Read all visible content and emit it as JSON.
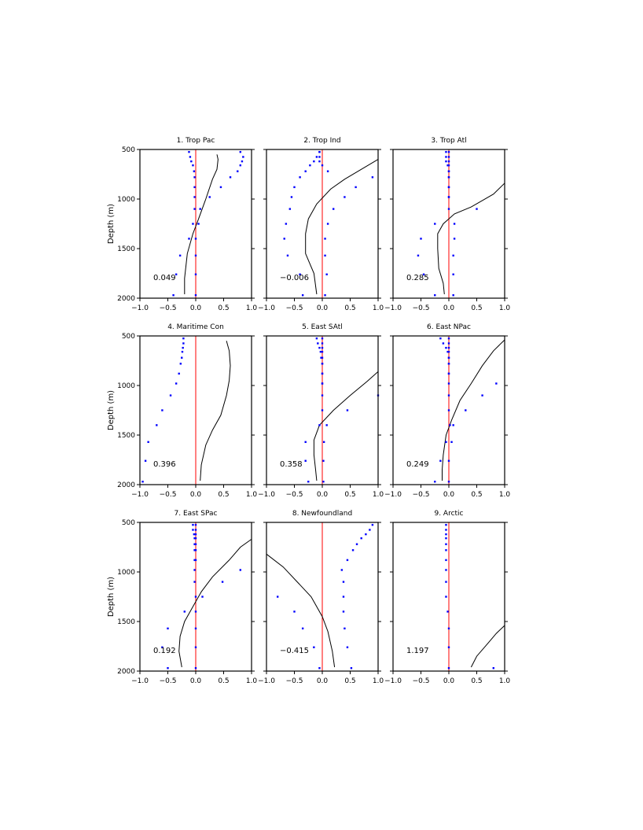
{
  "colors": {
    "zero_line": "#ff0000",
    "dots": "#0000ff",
    "curve": "#000000",
    "axes": "#000000"
  },
  "shared_axes": {
    "ylabel": "Depth (m)",
    "xlim": [
      -1.0,
      1.0
    ],
    "ylim": [
      2000,
      500
    ],
    "xticks": [
      "-1.0",
      "-0.5",
      "0.0",
      "0.5",
      "1.0"
    ],
    "yticks": [
      "500",
      "1000",
      "1500",
      "2000"
    ]
  },
  "chart_data": [
    {
      "type": "scatter",
      "title": "1. Trop Pac",
      "value_label": "0.049",
      "dots": [
        [
          -0.12,
          525
        ],
        [
          -0.1,
          575
        ],
        [
          -0.08,
          620
        ],
        [
          -0.05,
          660
        ],
        [
          -0.03,
          720
        ],
        [
          -0.02,
          780
        ],
        [
          -0.02,
          880
        ],
        [
          -0.02,
          980
        ],
        [
          -0.02,
          1100
        ],
        [
          -0.05,
          1250
        ],
        [
          -0.12,
          1400
        ],
        [
          -0.28,
          1570
        ],
        [
          -0.35,
          1760
        ],
        [
          -0.4,
          1970
        ],
        [
          0.8,
          525
        ],
        [
          0.85,
          575
        ],
        [
          0.83,
          620
        ],
        [
          0.8,
          660
        ],
        [
          0.75,
          720
        ],
        [
          0.62,
          780
        ],
        [
          0.45,
          880
        ],
        [
          0.25,
          980
        ],
        [
          0.08,
          1100
        ],
        [
          0.05,
          1250
        ],
        [
          0.0,
          1400
        ],
        [
          0.0,
          1570
        ],
        [
          0.0,
          1760
        ],
        [
          0.0,
          1970
        ]
      ],
      "curve": [
        [
          0.38,
          550
        ],
        [
          0.4,
          600
        ],
        [
          0.38,
          700
        ],
        [
          0.3,
          800
        ],
        [
          0.18,
          1000
        ],
        [
          0.05,
          1200
        ],
        [
          -0.05,
          1350
        ],
        [
          -0.15,
          1550
        ],
        [
          -0.2,
          1800
        ],
        [
          -0.2,
          1960
        ]
      ]
    },
    {
      "type": "scatter",
      "title": "2. Trop Ind",
      "value_label": "−0.006",
      "dots": [
        [
          -0.05,
          525
        ],
        [
          -0.1,
          575
        ],
        [
          -0.15,
          620
        ],
        [
          -0.22,
          660
        ],
        [
          -0.3,
          720
        ],
        [
          -0.4,
          780
        ],
        [
          -0.5,
          880
        ],
        [
          -0.55,
          980
        ],
        [
          -0.58,
          1100
        ],
        [
          -0.65,
          1250
        ],
        [
          -0.68,
          1400
        ],
        [
          -0.62,
          1570
        ],
        [
          -0.4,
          1760
        ],
        [
          -0.35,
          1970
        ],
        [
          -0.05,
          525
        ],
        [
          -0.05,
          575
        ],
        [
          -0.05,
          620
        ],
        [
          0.0,
          660
        ],
        [
          0.1,
          720
        ],
        [
          0.9,
          780
        ],
        [
          0.6,
          880
        ],
        [
          0.4,
          980
        ],
        [
          0.2,
          1100
        ],
        [
          0.1,
          1250
        ],
        [
          0.05,
          1400
        ],
        [
          0.05,
          1570
        ],
        [
          0.08,
          1760
        ],
        [
          0.05,
          1970
        ]
      ],
      "curve": [
        [
          1.0,
          600
        ],
        [
          0.7,
          700
        ],
        [
          0.4,
          800
        ],
        [
          0.15,
          900
        ],
        [
          -0.1,
          1050
        ],
        [
          -0.25,
          1200
        ],
        [
          -0.3,
          1350
        ],
        [
          -0.3,
          1550
        ],
        [
          -0.15,
          1750
        ],
        [
          -0.1,
          1960
        ]
      ]
    },
    {
      "type": "scatter",
      "title": "3. Trop Atl",
      "value_label": "0.285",
      "dots": [
        [
          -0.05,
          525
        ],
        [
          -0.05,
          575
        ],
        [
          -0.05,
          620
        ],
        [
          -0.02,
          660
        ],
        [
          0.0,
          720
        ],
        [
          0.0,
          780
        ],
        [
          0.0,
          880
        ],
        [
          0.0,
          980
        ],
        [
          0.0,
          1100
        ],
        [
          -0.25,
          1250
        ],
        [
          -0.5,
          1400
        ],
        [
          -0.55,
          1570
        ],
        [
          -0.45,
          1760
        ],
        [
          -0.25,
          1970
        ],
        [
          0.0,
          525
        ],
        [
          0.0,
          575
        ],
        [
          0.0,
          620
        ],
        [
          0.0,
          660
        ],
        [
          0.0,
          720
        ],
        [
          0.0,
          780
        ],
        [
          0.0,
          880
        ],
        [
          0.0,
          980
        ],
        [
          0.5,
          1100
        ],
        [
          0.1,
          1250
        ],
        [
          0.1,
          1400
        ],
        [
          0.08,
          1570
        ],
        [
          0.08,
          1760
        ],
        [
          0.08,
          1970
        ]
      ],
      "curve": [
        [
          1.0,
          840
        ],
        [
          0.8,
          950
        ],
        [
          0.4,
          1080
        ],
        [
          0.1,
          1150
        ],
        [
          -0.1,
          1250
        ],
        [
          -0.2,
          1350
        ],
        [
          -0.2,
          1500
        ],
        [
          -0.18,
          1700
        ],
        [
          -0.1,
          1850
        ],
        [
          -0.08,
          1960
        ]
      ]
    },
    {
      "type": "scatter",
      "title": "4. Maritime Con",
      "value_label": "0.396",
      "dots": [
        [
          -0.22,
          525
        ],
        [
          -0.22,
          575
        ],
        [
          -0.23,
          620
        ],
        [
          -0.24,
          660
        ],
        [
          -0.25,
          720
        ],
        [
          -0.27,
          780
        ],
        [
          -0.3,
          880
        ],
        [
          -0.35,
          980
        ],
        [
          -0.45,
          1100
        ],
        [
          -0.6,
          1250
        ],
        [
          -0.7,
          1400
        ],
        [
          -0.85,
          1570
        ],
        [
          -0.9,
          1760
        ],
        [
          -0.95,
          1970
        ]
      ],
      "curve": [
        [
          0.55,
          550
        ],
        [
          0.6,
          650
        ],
        [
          0.62,
          800
        ],
        [
          0.6,
          950
        ],
        [
          0.55,
          1100
        ],
        [
          0.45,
          1300
        ],
        [
          0.3,
          1450
        ],
        [
          0.18,
          1600
        ],
        [
          0.1,
          1800
        ],
        [
          0.08,
          1960
        ]
      ]
    },
    {
      "type": "scatter",
      "title": "5. East SAtl",
      "value_label": "0.358",
      "dots": [
        [
          -0.1,
          525
        ],
        [
          -0.08,
          575
        ],
        [
          -0.05,
          620
        ],
        [
          -0.03,
          660
        ],
        [
          -0.02,
          720
        ],
        [
          0.0,
          780
        ],
        [
          0.0,
          880
        ],
        [
          0.0,
          980
        ],
        [
          0.0,
          1100
        ],
        [
          0.0,
          1250
        ],
        [
          -0.05,
          1400
        ],
        [
          -0.3,
          1570
        ],
        [
          -0.3,
          1760
        ],
        [
          -0.25,
          1970
        ],
        [
          0.0,
          525
        ],
        [
          0.0,
          575
        ],
        [
          0.0,
          620
        ],
        [
          0.0,
          660
        ],
        [
          0.0,
          720
        ],
        [
          0.0,
          780
        ],
        [
          0.0,
          880
        ],
        [
          0.0,
          980
        ],
        [
          1.0,
          1100
        ],
        [
          0.45,
          1250
        ],
        [
          0.08,
          1400
        ],
        [
          0.03,
          1570
        ],
        [
          0.02,
          1760
        ],
        [
          0.02,
          1970
        ]
      ],
      "curve": [
        [
          1.0,
          860
        ],
        [
          0.8,
          960
        ],
        [
          0.5,
          1100
        ],
        [
          0.2,
          1250
        ],
        [
          -0.05,
          1400
        ],
        [
          -0.15,
          1550
        ],
        [
          -0.15,
          1700
        ],
        [
          -0.12,
          1850
        ],
        [
          -0.1,
          1960
        ]
      ]
    },
    {
      "type": "scatter",
      "title": "6. East NPac",
      "value_label": "0.249",
      "dots": [
        [
          -0.15,
          525
        ],
        [
          -0.1,
          575
        ],
        [
          -0.05,
          620
        ],
        [
          -0.02,
          660
        ],
        [
          0.0,
          720
        ],
        [
          0.0,
          780
        ],
        [
          0.0,
          880
        ],
        [
          0.0,
          980
        ],
        [
          0.0,
          1100
        ],
        [
          0.0,
          1250
        ],
        [
          0.08,
          1400
        ],
        [
          -0.05,
          1570
        ],
        [
          -0.15,
          1760
        ],
        [
          -0.25,
          1970
        ],
        [
          0.0,
          525
        ],
        [
          0.0,
          575
        ],
        [
          0.0,
          620
        ],
        [
          0.0,
          660
        ],
        [
          0.0,
          720
        ],
        [
          0.0,
          780
        ],
        [
          0.0,
          880
        ],
        [
          0.85,
          980
        ],
        [
          0.6,
          1100
        ],
        [
          0.3,
          1250
        ],
        [
          0.02,
          1400
        ],
        [
          0.05,
          1570
        ],
        [
          0.0,
          1760
        ],
        [
          0.0,
          1970
        ]
      ],
      "curve": [
        [
          1.0,
          540
        ],
        [
          0.8,
          650
        ],
        [
          0.6,
          800
        ],
        [
          0.4,
          980
        ],
        [
          0.2,
          1150
        ],
        [
          0.05,
          1350
        ],
        [
          -0.05,
          1500
        ],
        [
          -0.1,
          1700
        ],
        [
          -0.12,
          1850
        ],
        [
          -0.12,
          1960
        ]
      ]
    },
    {
      "type": "scatter",
      "title": "7. East SPac",
      "value_label": "0.192",
      "dots": [
        [
          -0.05,
          525
        ],
        [
          -0.05,
          575
        ],
        [
          -0.03,
          620
        ],
        [
          -0.02,
          660
        ],
        [
          -0.02,
          720
        ],
        [
          -0.02,
          780
        ],
        [
          -0.02,
          880
        ],
        [
          -0.02,
          980
        ],
        [
          -0.02,
          1100
        ],
        [
          0.12,
          1250
        ],
        [
          -0.2,
          1400
        ],
        [
          -0.5,
          1570
        ],
        [
          -0.6,
          1760
        ],
        [
          -0.5,
          1970
        ],
        [
          0.0,
          525
        ],
        [
          0.0,
          575
        ],
        [
          0.0,
          620
        ],
        [
          0.0,
          660
        ],
        [
          0.0,
          720
        ],
        [
          0.0,
          780
        ],
        [
          0.0,
          880
        ],
        [
          0.8,
          980
        ],
        [
          0.48,
          1100
        ],
        [
          0.0,
          1250
        ],
        [
          0.0,
          1400
        ],
        [
          0.0,
          1570
        ],
        [
          0.0,
          1760
        ],
        [
          0.0,
          1970
        ]
      ],
      "curve": [
        [
          1.0,
          670
        ],
        [
          0.8,
          750
        ],
        [
          0.6,
          880
        ],
        [
          0.3,
          1050
        ],
        [
          0.1,
          1200
        ],
        [
          -0.05,
          1350
        ],
        [
          -0.2,
          1500
        ],
        [
          -0.28,
          1650
        ],
        [
          -0.3,
          1800
        ],
        [
          -0.25,
          1960
        ]
      ]
    },
    {
      "type": "scatter",
      "title": "8. Newfoundland",
      "value_label": "−0.415",
      "dots": [
        [
          0.9,
          525
        ],
        [
          0.85,
          575
        ],
        [
          0.78,
          620
        ],
        [
          0.7,
          660
        ],
        [
          0.62,
          720
        ],
        [
          0.55,
          780
        ],
        [
          0.45,
          880
        ],
        [
          0.35,
          980
        ],
        [
          0.38,
          1100
        ],
        [
          0.38,
          1250
        ],
        [
          0.38,
          1400
        ],
        [
          0.4,
          1570
        ],
        [
          0.45,
          1760
        ],
        [
          0.52,
          1970
        ],
        [
          -0.8,
          1250
        ],
        [
          -0.5,
          1400
        ],
        [
          -0.35,
          1570
        ],
        [
          -0.15,
          1760
        ],
        [
          -0.05,
          1970
        ]
      ],
      "curve": [
        [
          -1.0,
          820
        ],
        [
          -0.7,
          950
        ],
        [
          -0.45,
          1100
        ],
        [
          -0.2,
          1250
        ],
        [
          0.0,
          1450
        ],
        [
          0.1,
          1600
        ],
        [
          0.18,
          1800
        ],
        [
          0.22,
          1960
        ]
      ]
    },
    {
      "type": "scatter",
      "title": "9. Arctic",
      "value_label": "1.197",
      "dots": [
        [
          -0.05,
          525
        ],
        [
          -0.05,
          575
        ],
        [
          -0.05,
          620
        ],
        [
          -0.05,
          660
        ],
        [
          -0.05,
          720
        ],
        [
          -0.05,
          780
        ],
        [
          -0.05,
          880
        ],
        [
          -0.05,
          980
        ],
        [
          -0.05,
          1100
        ],
        [
          -0.05,
          1250
        ],
        [
          -0.02,
          1400
        ],
        [
          0.0,
          1570
        ],
        [
          0.0,
          1760
        ],
        [
          0.0,
          1970
        ],
        [
          0.8,
          1970
        ]
      ],
      "curve": [
        [
          1.0,
          1540
        ],
        [
          0.85,
          1620
        ],
        [
          0.7,
          1720
        ],
        [
          0.5,
          1850
        ],
        [
          0.4,
          1960
        ]
      ]
    }
  ]
}
